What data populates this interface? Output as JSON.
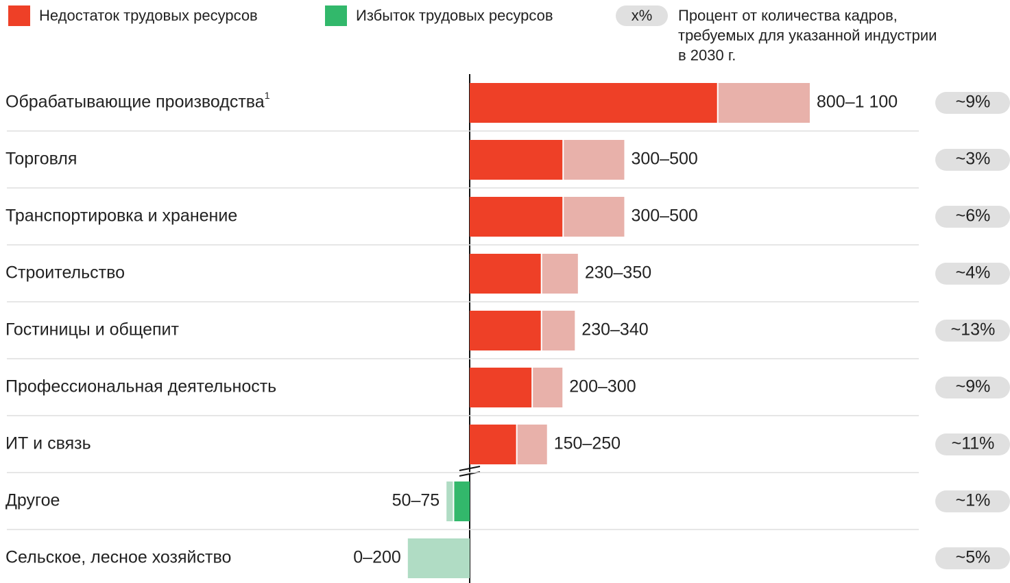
{
  "chart_data": {
    "type": "range_bar",
    "categories": [
      "Обрабатывающие производства",
      "Торговля",
      "Транспортировка и хранение",
      "Строительство",
      "Гостиницы и общепит",
      "Профессиональная деятельность",
      "ИТ и связь",
      "Другое",
      "Сельское, лесное хозяйство"
    ],
    "footnote_mark": "1",
    "series": [
      {
        "name": "Недостаток трудовых ресурсов",
        "color": "#ee4027",
        "light_color": "#e8b1aa",
        "low": [
          800,
          300,
          300,
          230,
          230,
          200,
          150,
          null,
          null
        ],
        "high": [
          1100,
          500,
          500,
          350,
          340,
          300,
          250,
          null,
          null
        ]
      },
      {
        "name": "Избыток трудовых ресурсов",
        "color": "#32b86b",
        "light_color": "#b0dcc4",
        "low": [
          null,
          null,
          null,
          null,
          null,
          null,
          null,
          50,
          0
        ],
        "high": [
          null,
          null,
          null,
          null,
          null,
          null,
          null,
          75,
          200
        ]
      }
    ],
    "value_labels": [
      "800–1 100",
      "300–500",
      "300–500",
      "230–350",
      "230–340",
      "200–300",
      "150–250",
      "50–75",
      "0–200"
    ],
    "share_legend": {
      "label": "x%",
      "lines": [
        "Процент от количества кадров,",
        "требуемых для указанной индустрии",
        "в 2030 г."
      ]
    },
    "shares": [
      "~9%",
      "~3%",
      "~6%",
      "~4%",
      "~13%",
      "~9%",
      "~11%",
      "~1%",
      "~5%"
    ]
  }
}
